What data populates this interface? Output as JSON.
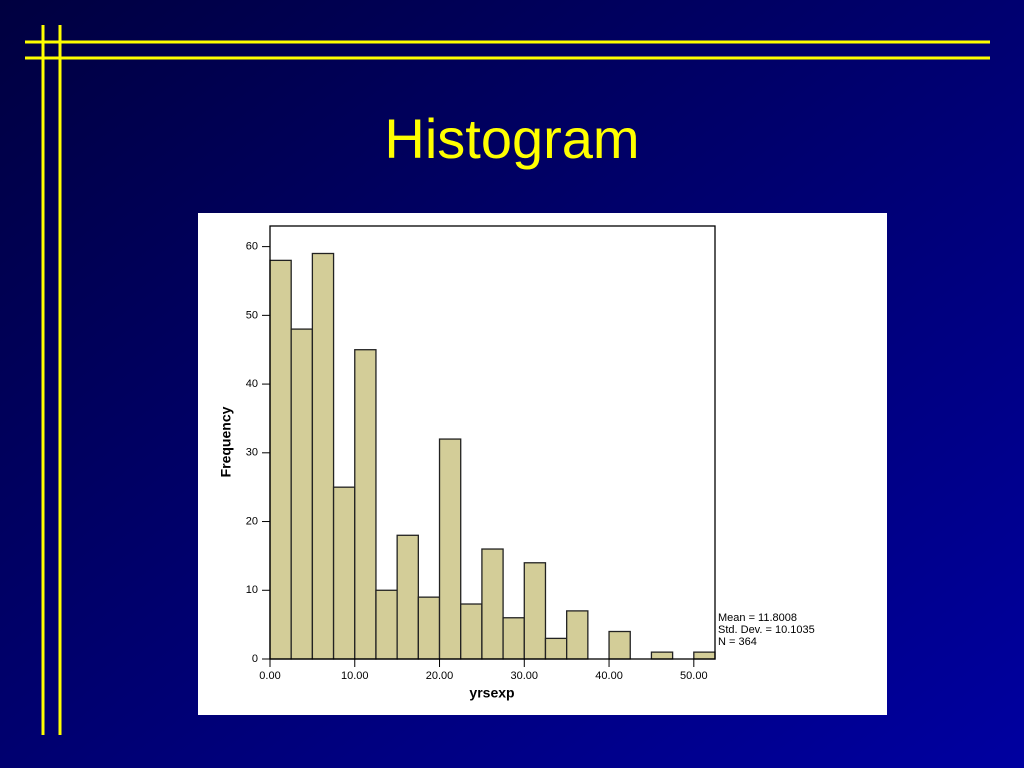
{
  "chart_data": {
    "type": "histogram",
    "title": "Histogram",
    "x_label": "yrsexp",
    "y_label": "Frequency",
    "bins": [
      0,
      2.5,
      5,
      7.5,
      10,
      12.5,
      15,
      17.5,
      20,
      22.5,
      25,
      27.5,
      30,
      32.5,
      35,
      37.5,
      40,
      42.5,
      45,
      47.5,
      50,
      52.5
    ],
    "values": [
      58,
      48,
      59,
      25,
      45,
      10,
      18,
      9,
      32,
      8,
      16,
      6,
      14,
      3,
      7,
      0,
      4,
      0,
      1,
      0,
      1
    ],
    "color": "#d3cd98",
    "xlim": [
      0,
      52.5
    ],
    "xticks": [
      {
        "value": 0,
        "label": "0.00"
      },
      {
        "value": 10,
        "label": "10.00"
      },
      {
        "value": 20,
        "label": "20.00"
      },
      {
        "value": 30,
        "label": "30.00"
      },
      {
        "value": 40,
        "label": "40.00"
      },
      {
        "value": 50,
        "label": "50.00"
      }
    ],
    "ylim": [
      0,
      63
    ],
    "yticks": [
      0,
      10,
      20,
      30,
      40,
      50,
      60
    ],
    "annotations": [
      "Mean = 11.8008",
      "Std. Dev. = 10.1035",
      "N = 364"
    ]
  }
}
